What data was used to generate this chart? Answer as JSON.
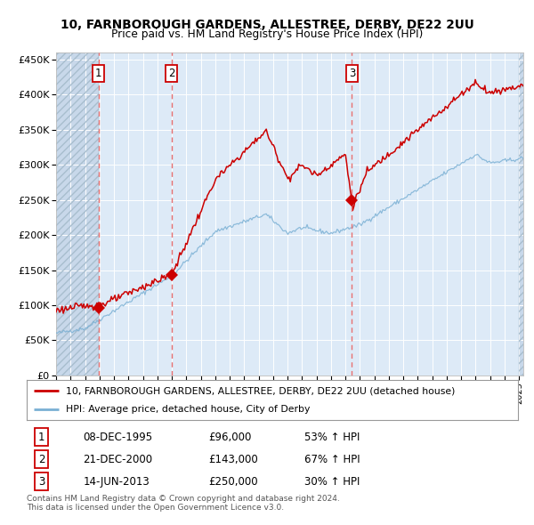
{
  "title1": "10, FARNBOROUGH GARDENS, ALLESTREE, DERBY, DE22 2UU",
  "title2": "Price paid vs. HM Land Registry's House Price Index (HPI)",
  "background_color": "#ddeaf7",
  "hatch_region_color": "#c8d8ea",
  "grid_color": "#ffffff",
  "red_line_color": "#cc0000",
  "blue_line_color": "#7ab0d4",
  "sale_marker_color": "#cc0000",
  "dashed_line_color": "#e87070",
  "sales": [
    {
      "date_num": 1995.94,
      "price": 96000,
      "label": "1",
      "date_str": "08-DEC-1995",
      "pct": "53%"
    },
    {
      "date_num": 2000.97,
      "price": 143000,
      "label": "2",
      "date_str": "21-DEC-2000",
      "pct": "67%"
    },
    {
      "date_num": 2013.45,
      "price": 250000,
      "label": "3",
      "date_str": "14-JUN-2013",
      "pct": "30%"
    }
  ],
  "legend_red_label": "10, FARNBOROUGH GARDENS, ALLESTREE, DERBY, DE22 2UU (detached house)",
  "legend_blue_label": "HPI: Average price, detached house, City of Derby",
  "footer": "Contains HM Land Registry data © Crown copyright and database right 2024.\nThis data is licensed under the Open Government Licence v3.0.",
  "ylim": [
    0,
    460000
  ],
  "xlim_start": 1993.0,
  "xlim_end": 2025.3
}
